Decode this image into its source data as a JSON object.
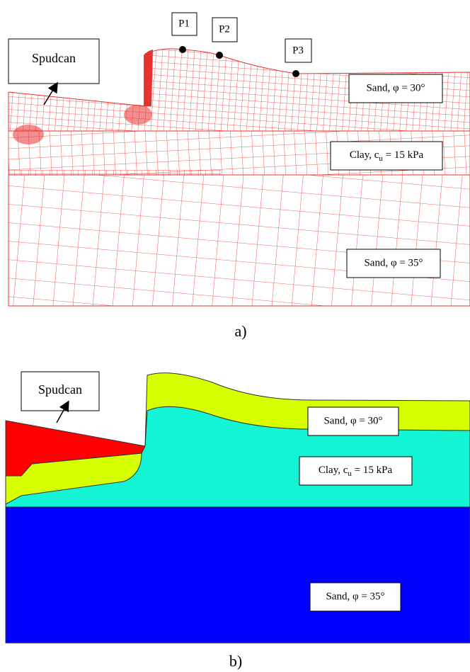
{
  "panel_a": {
    "spudcan": "Spudcan",
    "points": [
      "P1",
      "P2",
      "P3"
    ],
    "sand_top": "Sand, φ = 30°",
    "clay": {
      "prefix": "Clay, c",
      "subscript": "u",
      "suffix": " = 15 kPa"
    },
    "sand_bottom": "Sand, φ = 35°",
    "caption": "a)"
  },
  "panel_b": {
    "spudcan": "Spudcan",
    "sand_top": "Sand, φ = 30°",
    "clay": {
      "prefix": "Clay, c",
      "subscript": "u",
      "suffix": " = 15 kPa"
    },
    "sand_bottom": "Sand, φ = 35°",
    "caption": "b)"
  }
}
